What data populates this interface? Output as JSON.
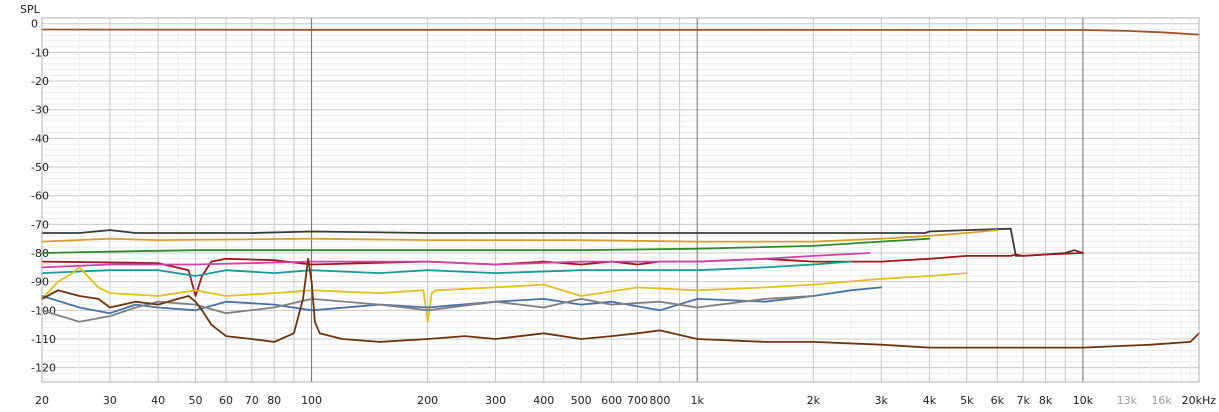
{
  "chart_data": {
    "type": "line",
    "title": "",
    "ylabel": "SPL",
    "xlabel": "",
    "x_scale": "log",
    "xlim": [
      20,
      20000
    ],
    "ylim": [
      -125,
      2
    ],
    "grid": true,
    "y_ticks": [
      "0",
      "-10",
      "-20",
      "-30",
      "-40",
      "-50",
      "-60",
      "-70",
      "-80",
      "-90",
      "-100",
      "-110",
      "-120"
    ],
    "x_ticks": [
      {
        "f": 20,
        "label": "20",
        "major": false
      },
      {
        "f": 30,
        "label": "30",
        "major": false
      },
      {
        "f": 40,
        "label": "40",
        "major": false
      },
      {
        "f": 50,
        "label": "50",
        "major": false
      },
      {
        "f": 60,
        "label": "60",
        "major": false
      },
      {
        "f": 70,
        "label": "70",
        "major": false
      },
      {
        "f": 80,
        "label": "80",
        "major": false
      },
      {
        "f": 100,
        "label": "100",
        "major": true
      },
      {
        "f": 200,
        "label": "200",
        "major": false
      },
      {
        "f": 300,
        "label": "300",
        "major": false
      },
      {
        "f": 400,
        "label": "400",
        "major": false
      },
      {
        "f": 500,
        "label": "500",
        "major": false
      },
      {
        "f": 600,
        "label": "600",
        "major": false
      },
      {
        "f": 700,
        "label": "700",
        "major": false
      },
      {
        "f": 800,
        "label": "800",
        "major": false
      },
      {
        "f": 1000,
        "label": "1k",
        "major": true
      },
      {
        "f": 2000,
        "label": "2k",
        "major": false
      },
      {
        "f": 3000,
        "label": "3k",
        "major": false
      },
      {
        "f": 4000,
        "label": "4k",
        "major": false
      },
      {
        "f": 5000,
        "label": "5k",
        "major": false
      },
      {
        "f": 6000,
        "label": "6k",
        "major": false
      },
      {
        "f": 7000,
        "label": "7k",
        "major": false
      },
      {
        "f": 8000,
        "label": "8k",
        "major": false
      },
      {
        "f": 10000,
        "label": "10k",
        "major": true
      },
      {
        "f": 13000,
        "label": "13k",
        "major": false,
        "faint": true
      },
      {
        "f": 16000,
        "label": "16k",
        "major": false,
        "faint": true
      },
      {
        "f": 20000,
        "label": "20kHz",
        "major": false
      }
    ],
    "series": [
      {
        "color": "#a0522d",
        "x": [
          20,
          100,
          1000,
          10000,
          13000,
          16000,
          20000
        ],
        "y": [
          -2,
          -2.1,
          -2.1,
          -2.2,
          -2.5,
          -3,
          -3.8
        ]
      },
      {
        "color": "#3a3a3a",
        "x": [
          20,
          25,
          30,
          35,
          40,
          50,
          70,
          100,
          200,
          500,
          1000,
          2000,
          3900,
          4000,
          5000,
          6500,
          6700,
          7000,
          8000,
          9000,
          9500,
          10000
        ],
        "y": [
          -73,
          -73,
          -72,
          -73,
          -73,
          -73,
          -73,
          -72.5,
          -73,
          -73,
          -73,
          -73,
          -73,
          -72.5,
          -72,
          -71.5,
          -81,
          -81,
          -80.5,
          -80,
          -79,
          -80
        ]
      },
      {
        "color": "#d4a030",
        "x": [
          20,
          30,
          40,
          100,
          200,
          500,
          1000,
          2000,
          3000,
          4000,
          5000,
          6000
        ],
        "y": [
          -76,
          -75,
          -75.5,
          -75,
          -75.5,
          -75.5,
          -76,
          -76,
          -75,
          -74,
          -73,
          -72
        ]
      },
      {
        "color": "#2e8b2e",
        "x": [
          20,
          30,
          50,
          100,
          200,
          500,
          1000,
          2000,
          3000,
          4000
        ],
        "y": [
          -80,
          -79.5,
          -79,
          -79,
          -79,
          -79,
          -78.5,
          -77.5,
          -76,
          -75
        ]
      },
      {
        "color": "#a01818",
        "x": [
          20,
          40,
          48,
          50,
          52,
          55,
          60,
          80,
          100,
          200,
          300,
          400,
          500,
          600,
          700,
          800,
          1000,
          1500,
          2000,
          3000,
          4000,
          5000,
          6000,
          6500,
          6700,
          7000,
          8000,
          10000
        ],
        "y": [
          -83,
          -83.5,
          -86,
          -95,
          -88,
          -83,
          -82,
          -82.5,
          -84,
          -83,
          -84,
          -83,
          -84,
          -83,
          -84,
          -83,
          -83,
          -82,
          -83,
          -83,
          -82,
          -81,
          -81,
          -81,
          -80.5,
          -81,
          -80.5,
          -80
        ]
      },
      {
        "color": "#cc44aa",
        "x": [
          20,
          30,
          50,
          100,
          200,
          300,
          500,
          800,
          1000,
          1500,
          2000,
          2800
        ],
        "y": [
          -85,
          -84,
          -84,
          -83,
          -83,
          -84,
          -83,
          -83,
          -83,
          -82,
          -81,
          -80
        ]
      },
      {
        "color": "#1a9a9a",
        "x": [
          20,
          30,
          40,
          50,
          60,
          80,
          100,
          150,
          200,
          300,
          500,
          1000,
          1500,
          2000,
          2500
        ],
        "y": [
          -87,
          -86,
          -86,
          -88,
          -86,
          -87,
          -86,
          -87,
          -86,
          -87,
          -86,
          -86,
          -85,
          -84,
          -83
        ]
      },
      {
        "color": "#e0c020",
        "x": [
          20,
          22,
          24,
          25,
          28,
          30,
          40,
          50,
          60,
          80,
          100,
          150,
          195,
          200,
          205,
          210,
          300,
          400,
          500,
          700,
          1000,
          1500,
          2000,
          3000,
          4000,
          5000
        ],
        "y": [
          -96,
          -90,
          -87,
          -85,
          -92,
          -94,
          -95,
          -93,
          -95,
          -94,
          -93,
          -94,
          -93,
          -104,
          -94,
          -93,
          -92,
          -91,
          -95,
          -92,
          -93,
          -92,
          -91,
          -89,
          -88,
          -87
        ]
      },
      {
        "color": "#4a70a8",
        "x": [
          20,
          25,
          30,
          35,
          40,
          50,
          60,
          80,
          100,
          150,
          200,
          300,
          400,
          500,
          600,
          800,
          1000,
          1500,
          2000,
          2500,
          3000
        ],
        "y": [
          -95,
          -99,
          -101,
          -98,
          -99,
          -100,
          -97,
          -98,
          -100,
          -98,
          -99,
          -97,
          -96,
          -98,
          -97,
          -100,
          -96,
          -97,
          -95,
          -93,
          -92
        ]
      },
      {
        "color": "#808080",
        "x": [
          20,
          25,
          30,
          35,
          40,
          50,
          60,
          80,
          100,
          150,
          200,
          300,
          400,
          500,
          600,
          800,
          1000,
          1500,
          2000
        ],
        "y": [
          -100,
          -104,
          -102,
          -99,
          -97,
          -98,
          -101,
          -99,
          -96,
          -98,
          -100,
          -97,
          -99,
          -96,
          -98,
          -97,
          -99,
          -96,
          -95
        ]
      },
      {
        "color": "#6b3410",
        "x": [
          20,
          22,
          25,
          28,
          30,
          35,
          40,
          45,
          48,
          50,
          52,
          55,
          60,
          70,
          80,
          90,
          95,
          98,
          100,
          102,
          105,
          120,
          150,
          200,
          250,
          300,
          400,
          500,
          600,
          700,
          800,
          1000,
          1500,
          2000,
          3000,
          4000,
          5000,
          7000,
          10000,
          15000,
          19000,
          20000
        ],
        "y": [
          -96,
          -93,
          -95,
          -96,
          -99,
          -97,
          -98,
          -96,
          -95,
          -97,
          -100,
          -105,
          -109,
          -110,
          -111,
          -108,
          -96,
          -82,
          -90,
          -104,
          -108,
          -110,
          -111,
          -110,
          -109,
          -110,
          -108,
          -110,
          -109,
          -108,
          -107,
          -110,
          -111,
          -111,
          -112,
          -113,
          -113,
          -113,
          -113,
          -112,
          -111,
          -108
        ]
      }
    ]
  }
}
